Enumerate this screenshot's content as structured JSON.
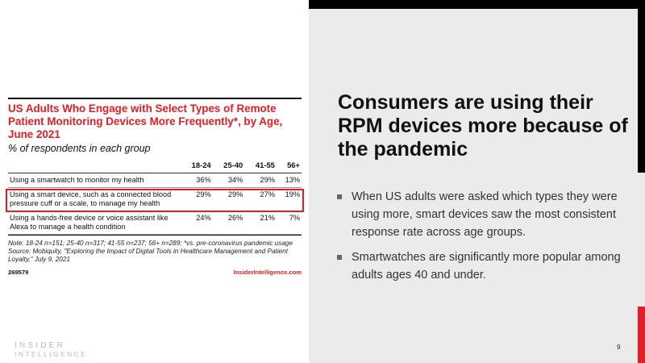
{
  "chart_data": {
    "type": "table",
    "title": "US Adults Who Engage with Select Types of Remote Patient Monitoring Devices More Frequently*, by Age, June 2021",
    "subtitle": "% of respondents in each group",
    "columns": [
      "18-24",
      "25-40",
      "41-55",
      "56+"
    ],
    "rows": [
      {
        "label": "Using a smartwatch to monitor my health",
        "values": [
          "36%",
          "34%",
          "29%",
          "13%"
        ],
        "highlighted": false
      },
      {
        "label": "Using a smart device, such as a connected blood pressure cuff or a scale, to manage my health",
        "values": [
          "29%",
          "29%",
          "27%",
          "19%"
        ],
        "highlighted": true
      },
      {
        "label": "Using a hands-free device or voice assistant like Alexa to manage a health condition",
        "values": [
          "24%",
          "26%",
          "21%",
          "7%"
        ],
        "highlighted": false
      }
    ],
    "note": "Note: 18-24 n=151; 25-40 n=317; 41-55 n=237; 56+ n=289; *vs. pre-coronavirus pandemic usage",
    "source": "Source: Mobiquity, \"Exploring the Impact of Digital Tools in Healthcare Management and Patient Loyalty,\" July 9, 2021",
    "chart_id": "269579",
    "brand": "InsiderIntelligence.com",
    "accent_color": "#e21d24"
  },
  "logo": {
    "line1": "INSIDER",
    "line2": "INTELLIGENCE"
  },
  "headline": "Consumers are using their RPM devices more because of the pandemic",
  "bullets": [
    "When US adults were asked which types they were using more, smart devices saw the most consistent response rate across age groups.",
    "Smartwatches are significantly more popular among adults ages 40 and under."
  ],
  "page_number": "9"
}
